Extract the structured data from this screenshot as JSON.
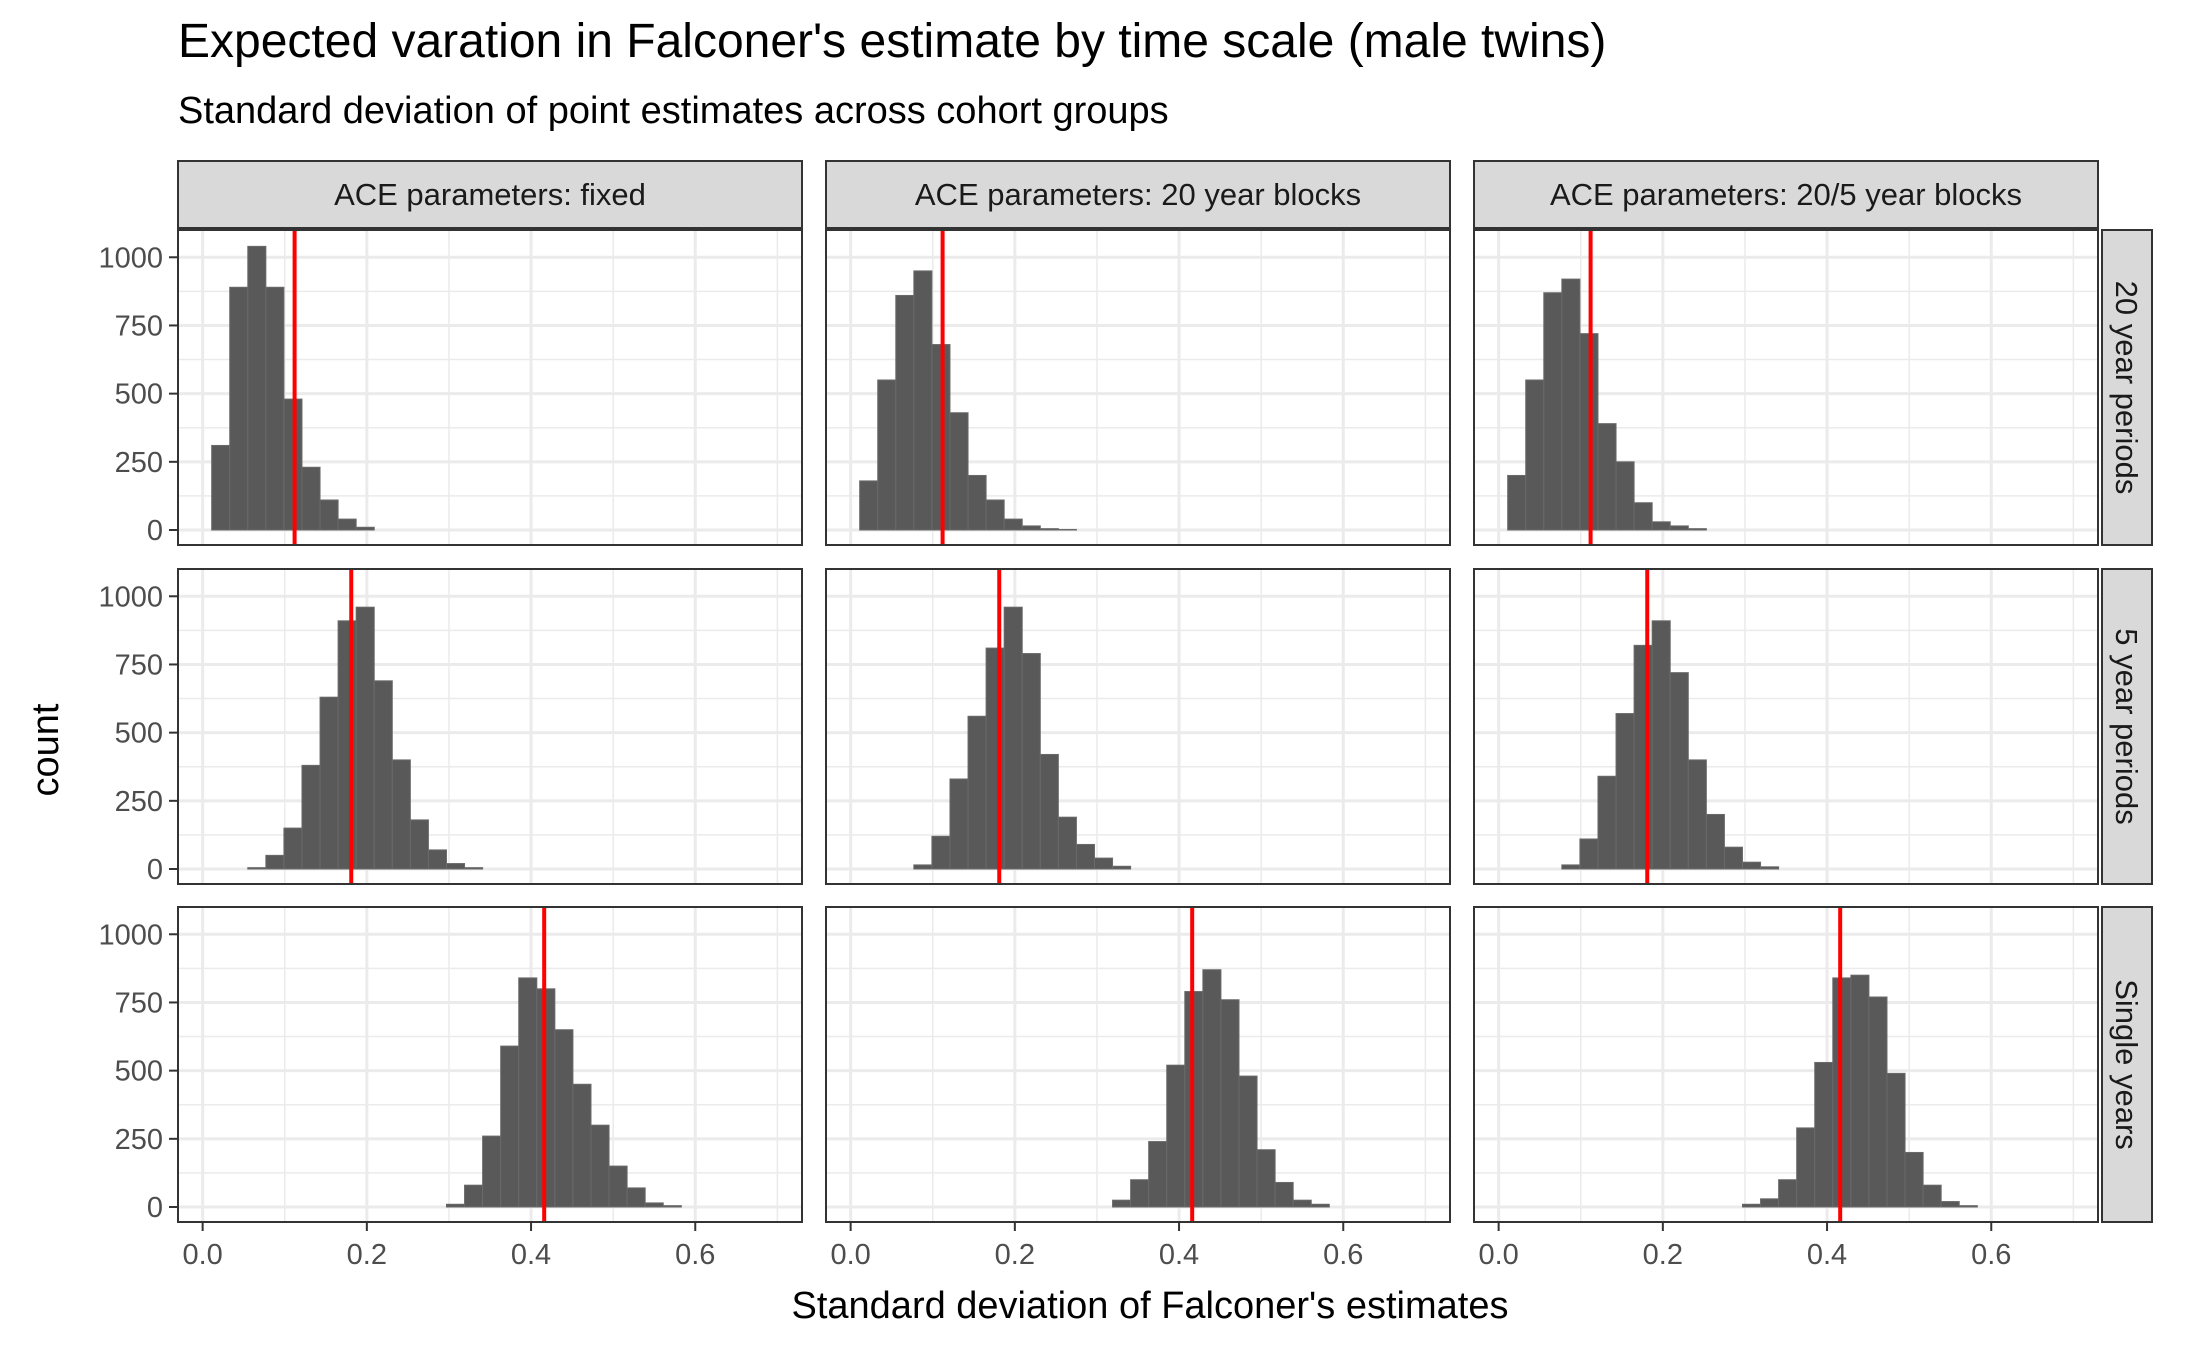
{
  "chart_data": {
    "type": "bar",
    "title": "Expected varation in Falconer's estimate by time scale (male twins)",
    "subtitle": "Standard deviation of point estimates across cohort groups",
    "xlabel": "Standard deviation of Falconer's estimates",
    "ylabel": "count",
    "xlim": [
      -0.03,
      0.73
    ],
    "ylim": [
      -55,
      1100
    ],
    "x_ticks": [
      "0.0",
      "0.2",
      "0.4",
      "0.6"
    ],
    "y_ticks": [
      "0",
      "250",
      "500",
      "750",
      "1000"
    ],
    "grid": true,
    "bin_width": 0.022,
    "column_labels": [
      "ACE parameters: fixed",
      "ACE parameters: 20 year blocks",
      "ACE parameters: 20/5 year blocks"
    ],
    "row_labels": [
      "20 year periods",
      "5 year periods",
      "Single years"
    ],
    "colors": {
      "bar": "#595959",
      "reference_line": "#ff0000",
      "panel_border": "#333333",
      "grid": "#ebebeb",
      "strip_fill": "#d9d9d9"
    },
    "reference_lines": {
      "20 year periods": 0.112,
      "5 year periods": 0.181,
      "Single years": 0.416
    },
    "panels": [
      {
        "row": "20 year periods",
        "column": "ACE parameters: fixed",
        "bins": [
          [
            0.022,
            310
          ],
          [
            0.044,
            890
          ],
          [
            0.066,
            1040
          ],
          [
            0.088,
            890
          ],
          [
            0.11,
            480
          ],
          [
            0.132,
            230
          ],
          [
            0.154,
            110
          ],
          [
            0.176,
            40
          ],
          [
            0.198,
            10
          ]
        ]
      },
      {
        "row": "20 year periods",
        "column": "ACE parameters: 20 year blocks",
        "bins": [
          [
            0.022,
            180
          ],
          [
            0.044,
            550
          ],
          [
            0.066,
            860
          ],
          [
            0.088,
            950
          ],
          [
            0.11,
            680
          ],
          [
            0.132,
            430
          ],
          [
            0.154,
            200
          ],
          [
            0.176,
            110
          ],
          [
            0.198,
            40
          ],
          [
            0.22,
            15
          ],
          [
            0.242,
            5
          ],
          [
            0.264,
            2
          ]
        ]
      },
      {
        "row": "20 year periods",
        "column": "ACE parameters: 20/5 year blocks",
        "bins": [
          [
            0.022,
            200
          ],
          [
            0.044,
            550
          ],
          [
            0.066,
            870
          ],
          [
            0.088,
            920
          ],
          [
            0.11,
            720
          ],
          [
            0.132,
            390
          ],
          [
            0.154,
            250
          ],
          [
            0.176,
            100
          ],
          [
            0.198,
            30
          ],
          [
            0.22,
            15
          ],
          [
            0.242,
            5
          ]
        ]
      },
      {
        "row": "5 year periods",
        "column": "ACE parameters: fixed",
        "bins": [
          [
            0.066,
            5
          ],
          [
            0.088,
            50
          ],
          [
            0.11,
            150
          ],
          [
            0.132,
            380
          ],
          [
            0.154,
            630
          ],
          [
            0.176,
            910
          ],
          [
            0.198,
            960
          ],
          [
            0.22,
            690
          ],
          [
            0.242,
            400
          ],
          [
            0.264,
            180
          ],
          [
            0.286,
            70
          ],
          [
            0.308,
            20
          ],
          [
            0.33,
            5
          ]
        ]
      },
      {
        "row": "5 year periods",
        "column": "ACE parameters: 20 year blocks",
        "bins": [
          [
            0.088,
            15
          ],
          [
            0.11,
            120
          ],
          [
            0.132,
            330
          ],
          [
            0.154,
            560
          ],
          [
            0.176,
            810
          ],
          [
            0.198,
            960
          ],
          [
            0.22,
            790
          ],
          [
            0.242,
            420
          ],
          [
            0.264,
            190
          ],
          [
            0.286,
            90
          ],
          [
            0.308,
            40
          ],
          [
            0.33,
            10
          ]
        ]
      },
      {
        "row": "5 year periods",
        "column": "ACE parameters: 20/5 year blocks",
        "bins": [
          [
            0.088,
            15
          ],
          [
            0.11,
            110
          ],
          [
            0.132,
            340
          ],
          [
            0.154,
            570
          ],
          [
            0.176,
            820
          ],
          [
            0.198,
            910
          ],
          [
            0.22,
            720
          ],
          [
            0.242,
            400
          ],
          [
            0.264,
            200
          ],
          [
            0.286,
            80
          ],
          [
            0.308,
            25
          ],
          [
            0.33,
            8
          ]
        ]
      },
      {
        "row": "Single years",
        "column": "ACE parameters: fixed",
        "bins": [
          [
            0.308,
            10
          ],
          [
            0.33,
            80
          ],
          [
            0.352,
            260
          ],
          [
            0.374,
            590
          ],
          [
            0.396,
            840
          ],
          [
            0.418,
            800
          ],
          [
            0.44,
            650
          ],
          [
            0.462,
            450
          ],
          [
            0.484,
            300
          ],
          [
            0.506,
            150
          ],
          [
            0.528,
            70
          ],
          [
            0.55,
            15
          ],
          [
            0.572,
            5
          ]
        ]
      },
      {
        "row": "Single years",
        "column": "ACE parameters: 20 year blocks",
        "bins": [
          [
            0.33,
            25
          ],
          [
            0.352,
            100
          ],
          [
            0.374,
            240
          ],
          [
            0.396,
            520
          ],
          [
            0.418,
            790
          ],
          [
            0.44,
            870
          ],
          [
            0.462,
            760
          ],
          [
            0.484,
            480
          ],
          [
            0.506,
            210
          ],
          [
            0.528,
            90
          ],
          [
            0.55,
            25
          ],
          [
            0.572,
            10
          ]
        ]
      },
      {
        "row": "Single years",
        "column": "ACE parameters: 20/5 year blocks",
        "bins": [
          [
            0.308,
            10
          ],
          [
            0.33,
            30
          ],
          [
            0.352,
            100
          ],
          [
            0.374,
            290
          ],
          [
            0.396,
            530
          ],
          [
            0.418,
            840
          ],
          [
            0.44,
            850
          ],
          [
            0.462,
            770
          ],
          [
            0.484,
            490
          ],
          [
            0.506,
            200
          ],
          [
            0.528,
            80
          ],
          [
            0.55,
            20
          ],
          [
            0.572,
            5
          ]
        ]
      }
    ]
  }
}
